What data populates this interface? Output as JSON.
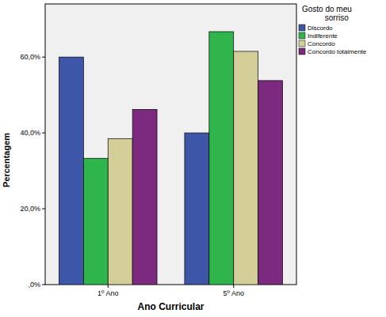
{
  "chart_data": {
    "type": "bar",
    "legend_title": "Gosto do meu sorriso",
    "x_label": "Ano Curricular",
    "y_label": "Percentagem",
    "categories": [
      "1º Ano",
      "5º Ano"
    ],
    "series": [
      {
        "name": "Discordo",
        "color": "#3d56a8",
        "values": [
          60.0,
          40.0
        ]
      },
      {
        "name": "Indiferente",
        "color": "#2fb54b",
        "values": [
          33.3,
          66.7
        ]
      },
      {
        "name": "Concordo",
        "color": "#d4cf98",
        "values": [
          38.5,
          61.5
        ]
      },
      {
        "name": "Concordo totalmente",
        "color": "#7b2a7f",
        "values": [
          46.2,
          53.8
        ]
      }
    ],
    "ylim": [
      0,
      74
    ],
    "yticks": [
      {
        "value": 0,
        "label": ",0%"
      },
      {
        "value": 20,
        "label": "20,0%"
      },
      {
        "value": 40,
        "label": "40,0%"
      },
      {
        "value": 60,
        "label": "60,0%"
      }
    ],
    "grid": false,
    "legend": "right"
  }
}
